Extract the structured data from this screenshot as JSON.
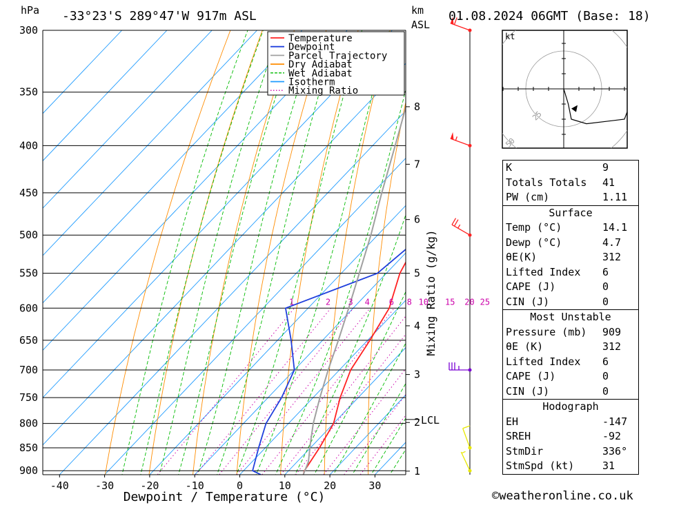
{
  "header": {
    "location": "-33°23'S 289°47'W 917m ASL",
    "datetime": "01.08.2024 06GMT (Base: 18)",
    "hpa_label": "hPa",
    "km_label": "km",
    "asl_label": "ASL"
  },
  "chart_data": {
    "type": "line",
    "title": "-33°23'S 289°47'W 917m ASL",
    "xlabel": "Dewpoint / Temperature (°C)",
    "ylabel": "hPa",
    "right_ylabel": "Mixing Ratio (g/kg)",
    "xlim": [
      -40,
      35
    ],
    "x_ticks": [
      -40,
      -30,
      -20,
      -10,
      0,
      10,
      20,
      30
    ],
    "pressure_levels": [
      300,
      350,
      400,
      450,
      500,
      550,
      600,
      650,
      700,
      750,
      800,
      850,
      900
    ],
    "km_ticks": [
      {
        "label": "1",
        "p": 901
      },
      {
        "label": "2",
        "p": 798
      },
      {
        "label": "3",
        "p": 708
      },
      {
        "label": "4",
        "p": 627
      },
      {
        "label": "5",
        "p": 550
      },
      {
        "label": "6",
        "p": 481
      },
      {
        "label": "7",
        "p": 419
      },
      {
        "label": "8",
        "p": 363
      }
    ],
    "lcl": {
      "label": "LCL",
      "p": 792
    },
    "mixing_ratio_labels": [
      "1",
      "2",
      "3",
      "4",
      "6",
      "8",
      "10",
      "15",
      "20",
      "25"
    ],
    "legend": [
      {
        "name": "Temperature",
        "color": "#ff2020",
        "style": "solid"
      },
      {
        "name": "Dewpoint",
        "color": "#1f3fdd",
        "style": "solid"
      },
      {
        "name": "Parcel Trajectory",
        "color": "#a0a0a0",
        "style": "solid"
      },
      {
        "name": "Dry Adiabat",
        "color": "#ff8c00",
        "style": "solid"
      },
      {
        "name": "Wet Adiabat",
        "color": "#00bb00",
        "style": "dashed"
      },
      {
        "name": "Isotherm",
        "color": "#1e9bff",
        "style": "solid"
      },
      {
        "name": "Mixing Ratio",
        "color": "#cc00aa",
        "style": "dotted"
      }
    ],
    "series": [
      {
        "name": "Temperature",
        "color": "#ff2020",
        "points": [
          [
            14.1,
            909
          ],
          [
            13.5,
            900
          ],
          [
            12.0,
            850
          ],
          [
            10.0,
            800
          ],
          [
            6.0,
            750
          ],
          [
            2.5,
            700
          ],
          [
            0.5,
            650
          ],
          [
            -2.0,
            600
          ],
          [
            -7.0,
            550
          ],
          [
            -10.5,
            500
          ],
          [
            -14.0,
            450
          ],
          [
            -20.0,
            400
          ],
          [
            -26.0,
            350
          ],
          [
            -33.0,
            300
          ]
        ]
      },
      {
        "name": "Dewpoint",
        "color": "#1f3fdd",
        "points": [
          [
            4.7,
            909
          ],
          [
            2.0,
            900
          ],
          [
            -1.5,
            850
          ],
          [
            -5.0,
            800
          ],
          [
            -7.0,
            750
          ],
          [
            -10.0,
            700
          ],
          [
            -17.0,
            650
          ],
          [
            -25.0,
            600
          ],
          [
            -12.0,
            550
          ],
          [
            -10.0,
            500
          ],
          [
            -13.5,
            450
          ],
          [
            -20.0,
            400
          ],
          [
            -27.0,
            350
          ],
          [
            -35.0,
            300
          ]
        ]
      },
      {
        "name": "Parcel Trajectory",
        "color": "#a0a0a0",
        "points": [
          [
            14.1,
            909
          ],
          [
            12.5,
            880
          ],
          [
            9.0,
            840
          ],
          [
            5.5,
            800
          ],
          [
            1.5,
            750
          ],
          [
            -2.5,
            700
          ],
          [
            -6.5,
            650
          ],
          [
            -11.0,
            600
          ],
          [
            -16.0,
            550
          ],
          [
            -21.5,
            500
          ],
          [
            -28.0,
            450
          ],
          [
            -35.0,
            400
          ],
          [
            -43.0,
            350
          ],
          [
            -52.0,
            300
          ]
        ]
      }
    ]
  },
  "wind_barbs": [
    {
      "p": 300,
      "color": "#ff2020",
      "dir": 290,
      "speed": 60
    },
    {
      "p": 400,
      "color": "#ff2020",
      "dir": 290,
      "speed": 55
    },
    {
      "p": 500,
      "color": "#ff2020",
      "dir": 300,
      "speed": 25
    },
    {
      "p": 700,
      "color": "#7a00d4",
      "dir": 270,
      "speed": 35
    },
    {
      "p": 850,
      "color": "#e8e800",
      "dir": 340,
      "speed": 10
    },
    {
      "p": 900,
      "color": "#e8e800",
      "dir": 335,
      "speed": 5
    }
  ],
  "hodograph": {
    "unit_label": "kt",
    "ring_labels": [
      "25",
      "50",
      "75"
    ],
    "points": [
      [
        0,
        0
      ],
      [
        3,
        -10
      ],
      [
        5,
        -20
      ],
      [
        15,
        -23
      ],
      [
        40,
        -20
      ],
      [
        43,
        -12
      ]
    ]
  },
  "indices": {
    "basic": [
      {
        "label": "K",
        "value": "9"
      },
      {
        "label": "Totals Totals",
        "value": "41"
      },
      {
        "label": "PW (cm)",
        "value": "1.11"
      }
    ],
    "surface": {
      "title": "Surface",
      "rows": [
        {
          "label": "Temp (°C)",
          "value": "14.1"
        },
        {
          "label": "Dewp (°C)",
          "value": "4.7"
        },
        {
          "label": "θE(K)",
          "value": "312"
        },
        {
          "label": "Lifted Index",
          "value": "6"
        },
        {
          "label": "CAPE (J)",
          "value": "0"
        },
        {
          "label": "CIN (J)",
          "value": "0"
        }
      ]
    },
    "most_unstable": {
      "title": "Most Unstable",
      "rows": [
        {
          "label": "Pressure (mb)",
          "value": "909"
        },
        {
          "label": "θE (K)",
          "value": "312"
        },
        {
          "label": "Lifted Index",
          "value": "6"
        },
        {
          "label": "CAPE (J)",
          "value": "0"
        },
        {
          "label": "CIN (J)",
          "value": "0"
        }
      ]
    },
    "hodograph": {
      "title": "Hodograph",
      "rows": [
        {
          "label": "EH",
          "value": "-147"
        },
        {
          "label": "SREH",
          "value": "-92"
        },
        {
          "label": "StmDir",
          "value": "336°"
        },
        {
          "label": "StmSpd (kt)",
          "value": "31"
        }
      ]
    }
  },
  "footer": {
    "copyright": "©weatheronline.co.uk"
  }
}
